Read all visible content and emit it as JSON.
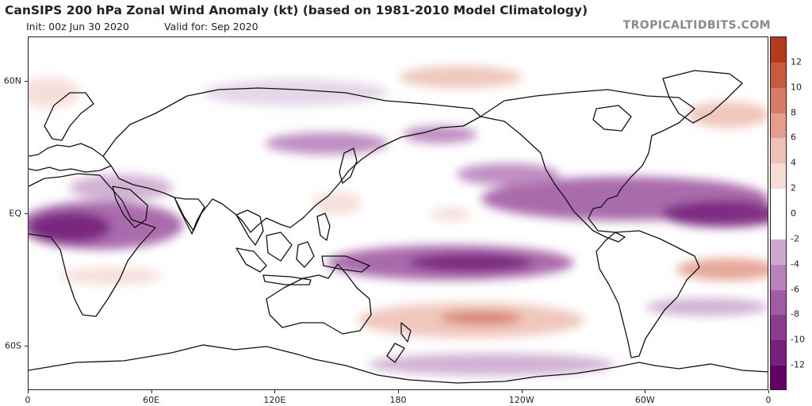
{
  "header": {
    "title": "CanSIPS 200 hPa Zonal Wind Anomaly (kt) (based on 1981-2010 Model Climatology)",
    "init_label": "Init: 00z Jun 30 2020",
    "valid_label": "Valid for: Sep 2020",
    "site": "TROPICALTIDBITS.COM"
  },
  "map": {
    "projection": "equirectangular",
    "lon_range": [
      0,
      360
    ],
    "lat_range": [
      -80,
      80
    ],
    "lat_labels": [
      {
        "text": "60N",
        "lat": 60
      },
      {
        "text": "EQ",
        "lat": 0
      },
      {
        "text": "60S",
        "lat": -60
      }
    ],
    "lon_labels": [
      {
        "text": "0",
        "lon": 0
      },
      {
        "text": "60E",
        "lon": 60
      },
      {
        "text": "120E",
        "lon": 120
      },
      {
        "text": "180",
        "lon": 180
      },
      {
        "text": "120W",
        "lon": 240
      },
      {
        "text": "60W",
        "lon": 300
      },
      {
        "text": "0",
        "lon": 360
      }
    ],
    "anomaly_features": [
      {
        "lon": 35,
        "lat": -5,
        "rlon": 40,
        "rlat": 11,
        "value": -8
      },
      {
        "lon": 20,
        "lat": -6,
        "rlon": 20,
        "rlat": 7,
        "value": -12
      },
      {
        "lon": 45,
        "lat": 12,
        "rlon": 25,
        "rlat": 6,
        "value": -4
      },
      {
        "lon": 205,
        "lat": -22,
        "rlon": 60,
        "rlat": 8,
        "value": -8
      },
      {
        "lon": 215,
        "lat": -22,
        "rlon": 30,
        "rlat": 4,
        "value": -12
      },
      {
        "lon": 290,
        "lat": 7,
        "rlon": 70,
        "rlat": 10,
        "value": -8
      },
      {
        "lon": 338,
        "lat": 0,
        "rlon": 30,
        "rlat": 6,
        "value": -12
      },
      {
        "lon": 233,
        "lat": 18,
        "rlon": 25,
        "rlat": 5,
        "value": -6
      },
      {
        "lon": 145,
        "lat": 32,
        "rlon": 30,
        "rlat": 5,
        "value": -6
      },
      {
        "lon": 200,
        "lat": 36,
        "rlon": 18,
        "rlat": 4,
        "value": -6
      },
      {
        "lon": 130,
        "lat": 55,
        "rlon": 45,
        "rlat": 6,
        "value": -2
      },
      {
        "lon": 330,
        "lat": -42,
        "rlon": 30,
        "rlat": 4,
        "value": -4
      },
      {
        "lon": 225,
        "lat": -68,
        "rlon": 60,
        "rlat": 5,
        "value": -4
      },
      {
        "lon": 215,
        "lat": -48,
        "rlon": 55,
        "rlat": 8,
        "value": 4
      },
      {
        "lon": 220,
        "lat": -47,
        "rlon": 20,
        "rlat": 3,
        "value": 8
      },
      {
        "lon": 40,
        "lat": -28,
        "rlon": 25,
        "rlat": 4,
        "value": 2
      },
      {
        "lon": 340,
        "lat": -25,
        "rlon": 25,
        "rlat": 5,
        "value": 6
      },
      {
        "lon": 340,
        "lat": 45,
        "rlon": 20,
        "rlat": 6,
        "value": 4
      },
      {
        "lon": 210,
        "lat": 62,
        "rlon": 30,
        "rlat": 5,
        "value": 4
      },
      {
        "lon": 10,
        "lat": 55,
        "rlon": 15,
        "rlat": 7,
        "value": 2
      },
      {
        "lon": 205,
        "lat": 0,
        "rlon": 10,
        "rlat": 3,
        "value": 2
      },
      {
        "lon": 150,
        "lat": 5,
        "rlon": 12,
        "rlat": 5,
        "value": 2
      }
    ]
  },
  "colorbar": {
    "levels": [
      -14,
      -12,
      -10,
      -8,
      -6,
      -4,
      -2,
      2,
      4,
      6,
      8,
      10,
      12,
      14
    ],
    "tick_labels": [
      "-12",
      "-10",
      "-8",
      "-6",
      "-4",
      "-2",
      "0",
      "2",
      "4",
      "6",
      "8",
      "10",
      "12"
    ],
    "tick_values": [
      -12,
      -10,
      -8,
      -6,
      -4,
      -2,
      0,
      2,
      4,
      6,
      8,
      10,
      12
    ],
    "colors": {
      "n14": "#620063",
      "n12": "#75207a",
      "n10": "#8c3c8e",
      "n8": "#a15ba4",
      "n6": "#b883bb",
      "n4": "#ccaacf",
      "n2": "#e2d2e5",
      "zero": "#ffffff",
      "p2": "#f5dcd6",
      "p4": "#edc1b6",
      "p6": "#e39e8d",
      "p8": "#d77c66",
      "p10": "#c85a41",
      "p12": "#b43a1e"
    }
  }
}
